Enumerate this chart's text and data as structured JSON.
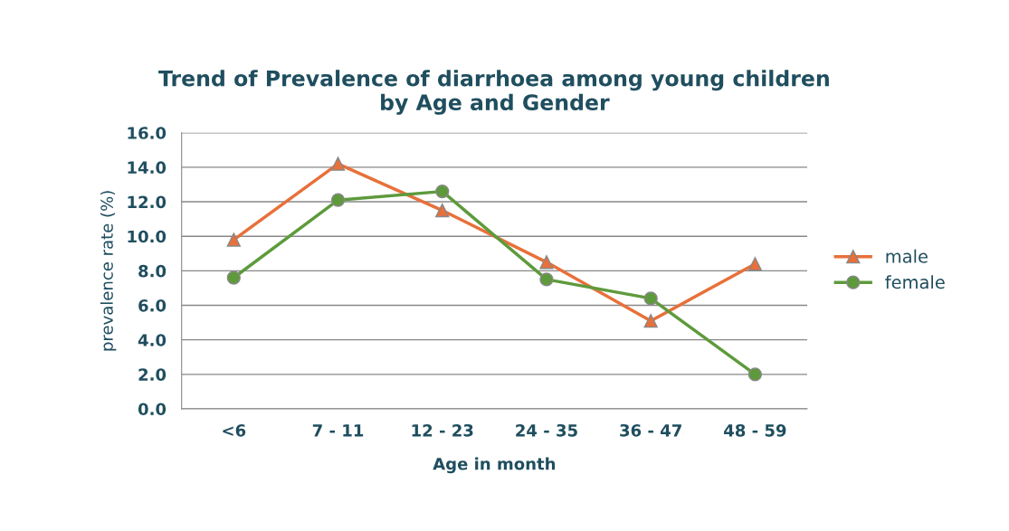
{
  "chart_data": {
    "type": "line",
    "title": "Trend of Prevalence of diarrhoea among young children\nby Age and Gender",
    "xlabel": "Age in month",
    "ylabel": "prevalence rate (%)",
    "categories": [
      "<6",
      "7 - 11",
      "12 - 23",
      "24 - 35",
      "36 - 47",
      "48 - 59"
    ],
    "series": [
      {
        "name": "male",
        "color": "#e8703a",
        "marker": "triangle",
        "values": [
          9.8,
          14.2,
          11.5,
          8.5,
          5.1,
          8.4
        ]
      },
      {
        "name": "female",
        "color": "#5e9a3c",
        "marker": "circle",
        "values": [
          7.6,
          12.1,
          12.6,
          7.5,
          6.4,
          2.0
        ]
      }
    ],
    "ylim": [
      0,
      16
    ],
    "yticks": [
      {
        "value": 0,
        "label": "0.0"
      },
      {
        "value": 2,
        "label": "2.0"
      },
      {
        "value": 4,
        "label": "4.0"
      },
      {
        "value": 6,
        "label": "6.0"
      },
      {
        "value": 8,
        "label": "8.0"
      },
      {
        "value": 10,
        "label": "10.0"
      },
      {
        "value": 12,
        "label": "12.0"
      },
      {
        "value": 14,
        "label": "14.0"
      },
      {
        "value": 16,
        "label": "16.0"
      }
    ],
    "grid": "y",
    "legend": "right",
    "line_style": "solid"
  }
}
